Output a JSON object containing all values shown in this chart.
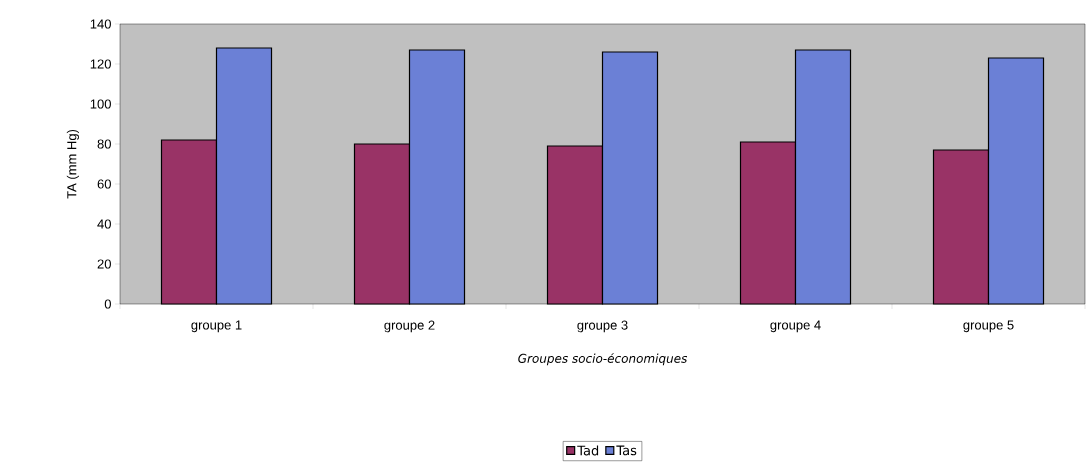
{
  "chart_data": {
    "type": "bar",
    "xlabel": "Groupes socio-économiques",
    "ylabel": "TA (mm Hg)",
    "categories": [
      "groupe 1",
      "groupe 2",
      "groupe 3",
      "groupe 4",
      "groupe 5"
    ],
    "series": [
      {
        "name": "Tad",
        "color": "#993366",
        "values": [
          82,
          80,
          79,
          81,
          77
        ]
      },
      {
        "name": "Tas",
        "color": "#6b80d6",
        "values": [
          128,
          127,
          126,
          127,
          123
        ]
      }
    ],
    "ylim": [
      0,
      140
    ],
    "yticks": [
      0,
      20,
      40,
      60,
      80,
      100,
      120,
      140
    ],
    "grid": false,
    "legend": "bottom"
  }
}
